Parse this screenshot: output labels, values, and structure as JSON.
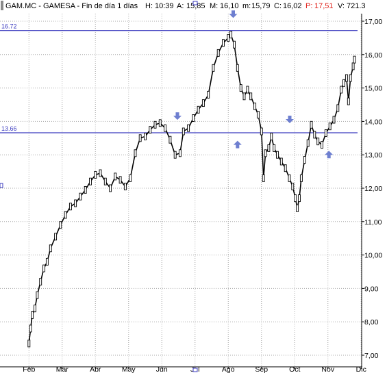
{
  "header": {
    "symbol": "GAM.MC - GAMESA - Fin de día 1 días",
    "h_label": "H:",
    "h_value": "10:39",
    "a_label": "A:",
    "a_value": "15,85",
    "m_label": "M:",
    "m_value": "16,10",
    "mn_label": "m:",
    "mn_value": "15,79",
    "c_label": "C:",
    "c_value": "16,02",
    "p_label": "P:",
    "p_value": "17,51",
    "v_label": "V:",
    "v_value": "721.3"
  },
  "colors": {
    "grid": "#a8a8a8",
    "line": "#3b3bbf",
    "arrow": "#6e7fd0",
    "candle": "#000000",
    "p_value": "#e0201a"
  },
  "chart_data": {
    "type": "line",
    "title": "",
    "xlabel": "",
    "ylabel": "",
    "grid": true,
    "ylim": [
      7.0,
      17.0
    ],
    "y_ticks": [
      "7,00",
      "8,00",
      "9,00",
      "10,00",
      "11,00",
      "12,00",
      "13,00",
      "14,00",
      "15,00",
      "16,00",
      "17,00"
    ],
    "x_ticks": [
      "Feb",
      "Mar",
      "Abr",
      "May",
      "Jun",
      "Jul",
      "Ago",
      "Sep",
      "Oct",
      "Nov",
      "Dic"
    ],
    "levels": [
      {
        "label": "16.72",
        "value": 16.72
      },
      {
        "label": "13.66",
        "value": 13.66
      }
    ],
    "arrows": [
      {
        "dir": "down",
        "month": 4.97,
        "value": 14.15
      },
      {
        "dir": "up",
        "month": 6.78,
        "value": 13.32
      },
      {
        "dir": "down",
        "month": 6.65,
        "value": 17.2
      },
      {
        "dir": "down",
        "month": 8.35,
        "value": 14.05
      },
      {
        "dir": "up",
        "month": 9.53,
        "value": 13.02
      }
    ],
    "series": [
      {
        "points": [
          [
            0.5,
            7.35
          ],
          [
            0.55,
            7.8
          ],
          [
            0.6,
            8.2
          ],
          [
            0.68,
            8.4
          ],
          [
            0.75,
            8.8
          ],
          [
            0.85,
            9.2
          ],
          [
            0.95,
            9.6
          ],
          [
            1.05,
            9.8
          ],
          [
            1.15,
            10.2
          ],
          [
            1.3,
            10.55
          ],
          [
            1.45,
            10.9
          ],
          [
            1.6,
            11.2
          ],
          [
            1.75,
            11.45
          ],
          [
            1.9,
            11.55
          ],
          [
            2.05,
            11.75
          ],
          [
            2.2,
            11.95
          ],
          [
            2.35,
            12.2
          ],
          [
            2.5,
            12.4
          ],
          [
            2.65,
            12.45
          ],
          [
            2.8,
            12.2
          ],
          [
            2.95,
            12.0
          ],
          [
            3.1,
            12.35
          ],
          [
            3.25,
            12.25
          ],
          [
            3.4,
            12.05
          ],
          [
            3.55,
            12.3
          ],
          [
            3.7,
            13.05
          ],
          [
            3.85,
            13.5
          ],
          [
            4.0,
            13.55
          ],
          [
            4.15,
            13.75
          ],
          [
            4.3,
            13.9
          ],
          [
            4.45,
            13.95
          ],
          [
            4.6,
            13.8
          ],
          [
            4.75,
            13.45
          ],
          [
            4.9,
            13.0
          ],
          [
            5.05,
            13.05
          ],
          [
            5.15,
            13.7
          ],
          [
            5.3,
            13.8
          ],
          [
            5.45,
            14.1
          ],
          [
            5.6,
            14.35
          ],
          [
            5.75,
            14.55
          ],
          [
            5.9,
            14.8
          ],
          [
            6.05,
            15.6
          ],
          [
            6.2,
            16.05
          ],
          [
            6.35,
            16.35
          ],
          [
            6.5,
            16.5
          ],
          [
            6.58,
            16.6
          ],
          [
            6.68,
            16.3
          ],
          [
            6.78,
            15.6
          ],
          [
            6.88,
            15.0
          ],
          [
            6.98,
            14.75
          ],
          [
            7.08,
            14.95
          ],
          [
            7.18,
            14.75
          ],
          [
            7.3,
            14.45
          ],
          [
            7.4,
            14.2
          ],
          [
            7.5,
            13.7
          ],
          [
            7.56,
            12.3
          ],
          [
            7.62,
            13.05
          ],
          [
            7.72,
            13.2
          ],
          [
            7.8,
            13.55
          ],
          [
            7.88,
            13.2
          ],
          [
            7.98,
            13.0
          ],
          [
            8.1,
            12.8
          ],
          [
            8.22,
            12.6
          ],
          [
            8.34,
            12.3
          ],
          [
            8.44,
            12.05
          ],
          [
            8.52,
            11.7
          ],
          [
            8.58,
            11.4
          ],
          [
            8.64,
            11.7
          ],
          [
            8.7,
            12.3
          ],
          [
            8.8,
            12.85
          ],
          [
            8.9,
            13.35
          ],
          [
            9.0,
            13.9
          ],
          [
            9.1,
            13.6
          ],
          [
            9.2,
            13.4
          ],
          [
            9.32,
            13.3
          ],
          [
            9.44,
            13.65
          ],
          [
            9.56,
            13.85
          ],
          [
            9.68,
            14.05
          ],
          [
            9.8,
            14.4
          ],
          [
            9.9,
            14.95
          ],
          [
            9.98,
            15.15
          ],
          [
            10.06,
            15.3
          ],
          [
            10.12,
            14.6
          ],
          [
            10.18,
            15.3
          ],
          [
            10.26,
            15.65
          ],
          [
            10.3,
            15.85
          ]
        ]
      }
    ]
  }
}
